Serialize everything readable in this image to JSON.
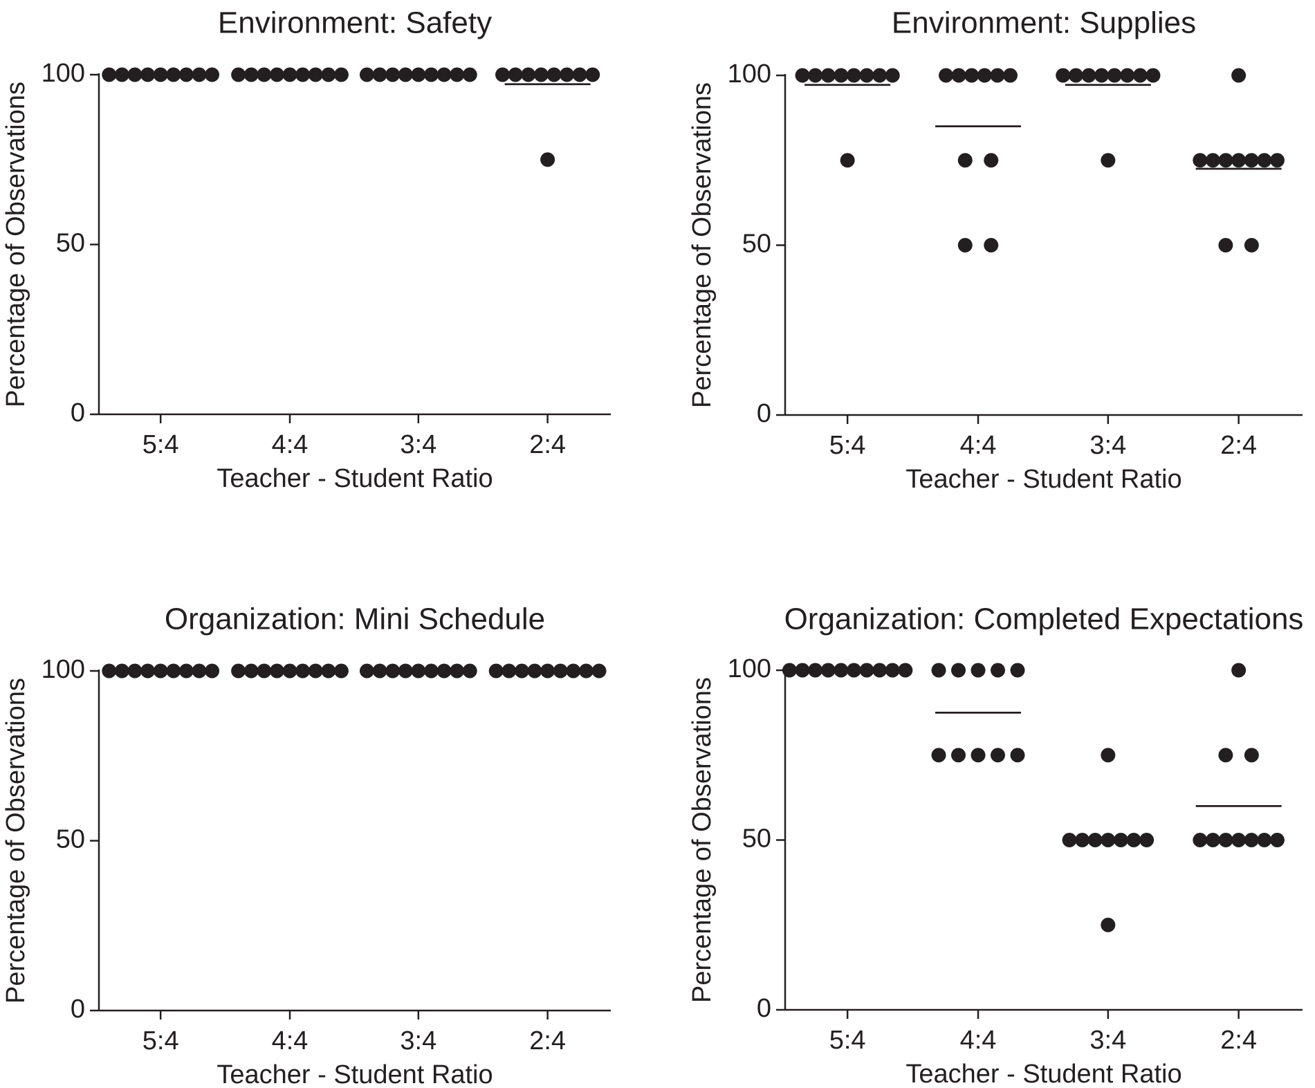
{
  "chart_data": [
    {
      "type": "scatter",
      "title": "Environment: Safety",
      "xlabel": "Teacher - Student Ratio",
      "ylabel": "Percentage of Observations",
      "categories": [
        "5:4",
        "4:4",
        "3:4",
        "2:4"
      ],
      "ylim": [
        0,
        100
      ],
      "yticks": [
        0,
        50,
        100
      ],
      "groups": [
        {
          "category": "5:4",
          "points": [
            100,
            100,
            100,
            100,
            100,
            100,
            100,
            100,
            100
          ],
          "mean": 100
        },
        {
          "category": "4:4",
          "points": [
            100,
            100,
            100,
            100,
            100,
            100,
            100,
            100,
            100
          ],
          "mean": 100
        },
        {
          "category": "3:4",
          "points": [
            100,
            100,
            100,
            100,
            100,
            100,
            100,
            100,
            100
          ],
          "mean": 100
        },
        {
          "category": "2:4",
          "points": [
            100,
            100,
            100,
            100,
            100,
            100,
            100,
            100,
            75
          ],
          "mean": 97.2
        }
      ]
    },
    {
      "type": "scatter",
      "title": "Environment: Supplies",
      "xlabel": "Teacher - Student Ratio",
      "ylabel": "Percentage of Observations",
      "categories": [
        "5:4",
        "4:4",
        "3:4",
        "2:4"
      ],
      "ylim": [
        0,
        100
      ],
      "yticks": [
        0,
        50,
        100
      ],
      "groups": [
        {
          "category": "5:4",
          "points": [
            100,
            100,
            100,
            100,
            100,
            100,
            100,
            100,
            75
          ],
          "mean": 97.2
        },
        {
          "category": "4:4",
          "points": [
            100,
            100,
            100,
            100,
            100,
            100,
            75,
            75,
            50,
            50
          ],
          "mean": 85
        },
        {
          "category": "3:4",
          "points": [
            100,
            100,
            100,
            100,
            100,
            100,
            100,
            100,
            75
          ],
          "mean": 97.2
        },
        {
          "category": "2:4",
          "points": [
            100,
            75,
            75,
            75,
            75,
            75,
            75,
            75,
            50,
            50
          ],
          "mean": 72.5
        }
      ]
    },
    {
      "type": "scatter",
      "title": "Organization: Mini Schedule",
      "xlabel": "Teacher - Student Ratio",
      "ylabel": "Percentage of Observations",
      "categories": [
        "5:4",
        "4:4",
        "3:4",
        "2:4"
      ],
      "ylim": [
        0,
        100
      ],
      "yticks": [
        0,
        50,
        100
      ],
      "groups": [
        {
          "category": "5:4",
          "points": [
            100,
            100,
            100,
            100,
            100,
            100,
            100,
            100,
            100
          ],
          "mean": 100
        },
        {
          "category": "4:4",
          "points": [
            100,
            100,
            100,
            100,
            100,
            100,
            100,
            100,
            100
          ],
          "mean": 100
        },
        {
          "category": "3:4",
          "points": [
            100,
            100,
            100,
            100,
            100,
            100,
            100,
            100,
            100
          ],
          "mean": 100
        },
        {
          "category": "2:4",
          "points": [
            100,
            100,
            100,
            100,
            100,
            100,
            100,
            100,
            100
          ],
          "mean": 100
        }
      ]
    },
    {
      "type": "scatter",
      "title": "Organization: Completed Expectations",
      "xlabel": "Teacher - Student Ratio",
      "ylabel": "Percentage of Observations",
      "categories": [
        "5:4",
        "4:4",
        "3:4",
        "2:4"
      ],
      "ylim": [
        0,
        100
      ],
      "yticks": [
        0,
        50,
        100
      ],
      "groups": [
        {
          "category": "5:4",
          "points": [
            100,
            100,
            100,
            100,
            100,
            100,
            100,
            100,
            100,
            100
          ],
          "mean": 100
        },
        {
          "category": "4:4",
          "points": [
            100,
            100,
            100,
            100,
            100,
            75,
            75,
            75,
            75,
            75
          ],
          "mean": 87.5
        },
        {
          "category": "3:4",
          "points": [
            75,
            50,
            50,
            50,
            50,
            50,
            50,
            50,
            25
          ],
          "mean": 50
        },
        {
          "category": "2:4",
          "points": [
            100,
            75,
            75,
            50,
            50,
            50,
            50,
            50,
            50,
            50
          ],
          "mean": 60
        }
      ]
    }
  ]
}
